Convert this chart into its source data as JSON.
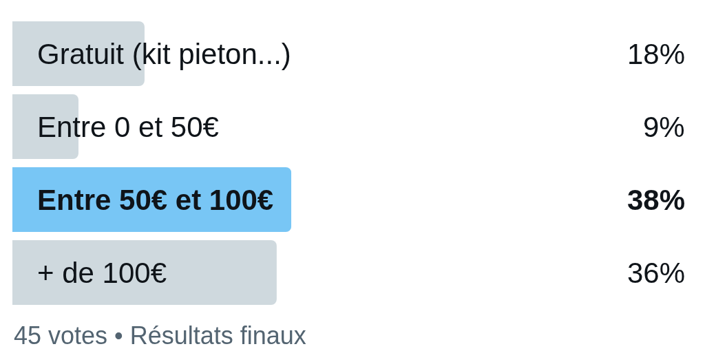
{
  "chart_data": {
    "type": "bar",
    "orientation": "horizontal",
    "categories": [
      "Gratuit (kit pieton...)",
      "Entre 0 et 50€",
      "Entre 50€ et 100€",
      "+ de 100€"
    ],
    "values": [
      18,
      9,
      38,
      36
    ],
    "colors": [
      "#cfd9de",
      "#cfd9de",
      "#78c6f5",
      "#cfd9de"
    ],
    "value_labels": [
      "18%",
      "9%",
      "38%",
      "36%"
    ],
    "tick_labels": "y",
    "annotations": [
      "45 votes • Résultats finaux"
    ]
  }
}
